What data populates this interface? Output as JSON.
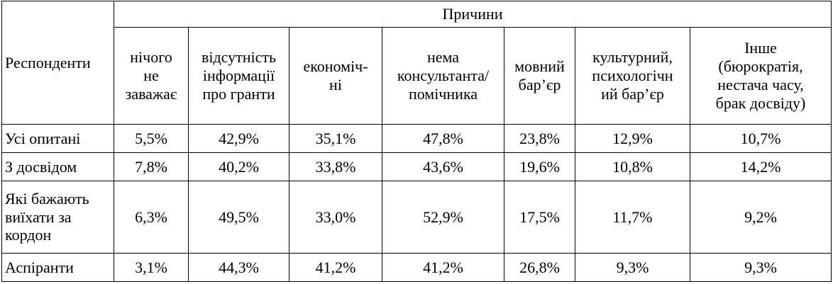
{
  "table": {
    "corner": "Респонденти",
    "group": "Причини",
    "columns": [
      "нічого\nне\nзаважає",
      "відсутність\nінформації\nпро гранти",
      "економіч-\nні",
      "нема\nконсультанта/\nпомічника",
      "мовний\nбар’єр",
      "культурний,\nпсихологічн\nий бар’єр",
      "Інше\n(бюрократія,\nнестача часу,\nбрак досвіду)"
    ],
    "rows": [
      {
        "label": "Усі опитані",
        "cells": [
          "5,5%",
          "42,9%",
          "35,1%",
          "47,8%",
          "23,8%",
          "12,9%",
          "10,7%"
        ]
      },
      {
        "label": "З досвідом",
        "cells": [
          "7,8%",
          "40,2%",
          "33,8%",
          "43,6%",
          "19,6%",
          "10,8%",
          "14,2%"
        ]
      },
      {
        "label": "Які бажають\nвиїхати за\nкордон",
        "cells": [
          "6,3%",
          "49,5%",
          "33,0%",
          "52,9%",
          "17,5%",
          "11,7%",
          "9,2%"
        ]
      },
      {
        "label": "Аспіранти",
        "cells": [
          "3,1%",
          "44,3%",
          "41,2%",
          "41,2%",
          "26,8%",
          "9,3%",
          "9,3%"
        ]
      }
    ]
  }
}
